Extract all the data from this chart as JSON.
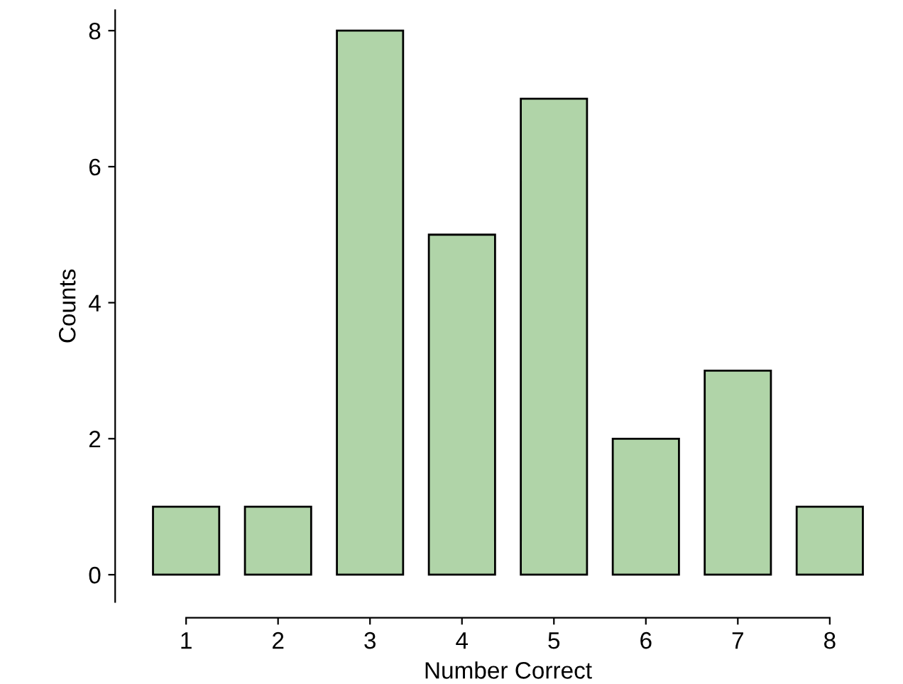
{
  "chart_data": {
    "type": "bar",
    "xlabel": "Number Correct",
    "ylabel": "Counts",
    "categories": [
      "1",
      "2",
      "3",
      "4",
      "5",
      "6",
      "7",
      "8"
    ],
    "values": [
      1,
      1,
      8,
      5,
      7,
      2,
      3,
      1
    ],
    "color": "#b0d4a8",
    "ylim": [
      -0.4,
      8.3
    ],
    "yticks": [
      0,
      2,
      4,
      6,
      8
    ],
    "grid": false
  }
}
